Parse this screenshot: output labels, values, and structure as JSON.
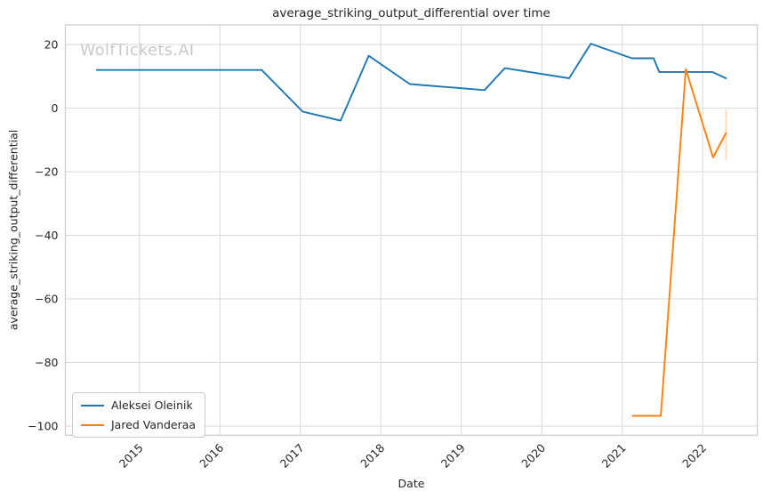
{
  "chart_data": {
    "type": "line",
    "title": "average_striking_output_differential over time",
    "xlabel": "Date",
    "ylabel": "average_striking_output_differential",
    "watermark": "WolfTickets.AI",
    "grid": true,
    "legend_position": "lower left",
    "xlim": [
      2014.08,
      2022.68
    ],
    "ylim": [
      -102.9,
      26.2
    ],
    "x_ticks": [
      2015,
      2016,
      2017,
      2018,
      2019,
      2020,
      2021,
      2022
    ],
    "y_ticks": [
      20,
      0,
      -20,
      -40,
      -60,
      -80,
      -100
    ],
    "series": [
      {
        "name": "Aleksei Oleinik",
        "color": "#1f77b4",
        "x": [
          2014.47,
          2016.52,
          2017.03,
          2017.5,
          2017.85,
          2018.36,
          2019.29,
          2019.54,
          2020.34,
          2020.61,
          2021.12,
          2021.39,
          2021.46,
          2022.12,
          2022.29
        ],
        "y": [
          12.0,
          12.0,
          -1.1,
          -3.9,
          16.5,
          7.6,
          5.7,
          12.6,
          9.4,
          20.3,
          15.7,
          15.7,
          11.4,
          11.4,
          9.4
        ]
      },
      {
        "name": "Jared Vanderaa",
        "color": "#ff7f0e",
        "x": [
          2021.13,
          2021.48,
          2021.79,
          2022.13,
          2022.29
        ],
        "y": [
          -96.8,
          -96.8,
          12.3,
          -15.5,
          -7.8
        ],
        "error_bar": {
          "x": 2022.29,
          "y_low": -16.5,
          "y_high": -0.5
        }
      }
    ]
  },
  "colors": {
    "grid": "#d9d9d9",
    "spine": "#cccccc",
    "text": "#262626",
    "watermark": "#c9c9c9",
    "background": "#ffffff",
    "series_blue": "#1f77b4",
    "series_orange": "#ff7f0e"
  }
}
